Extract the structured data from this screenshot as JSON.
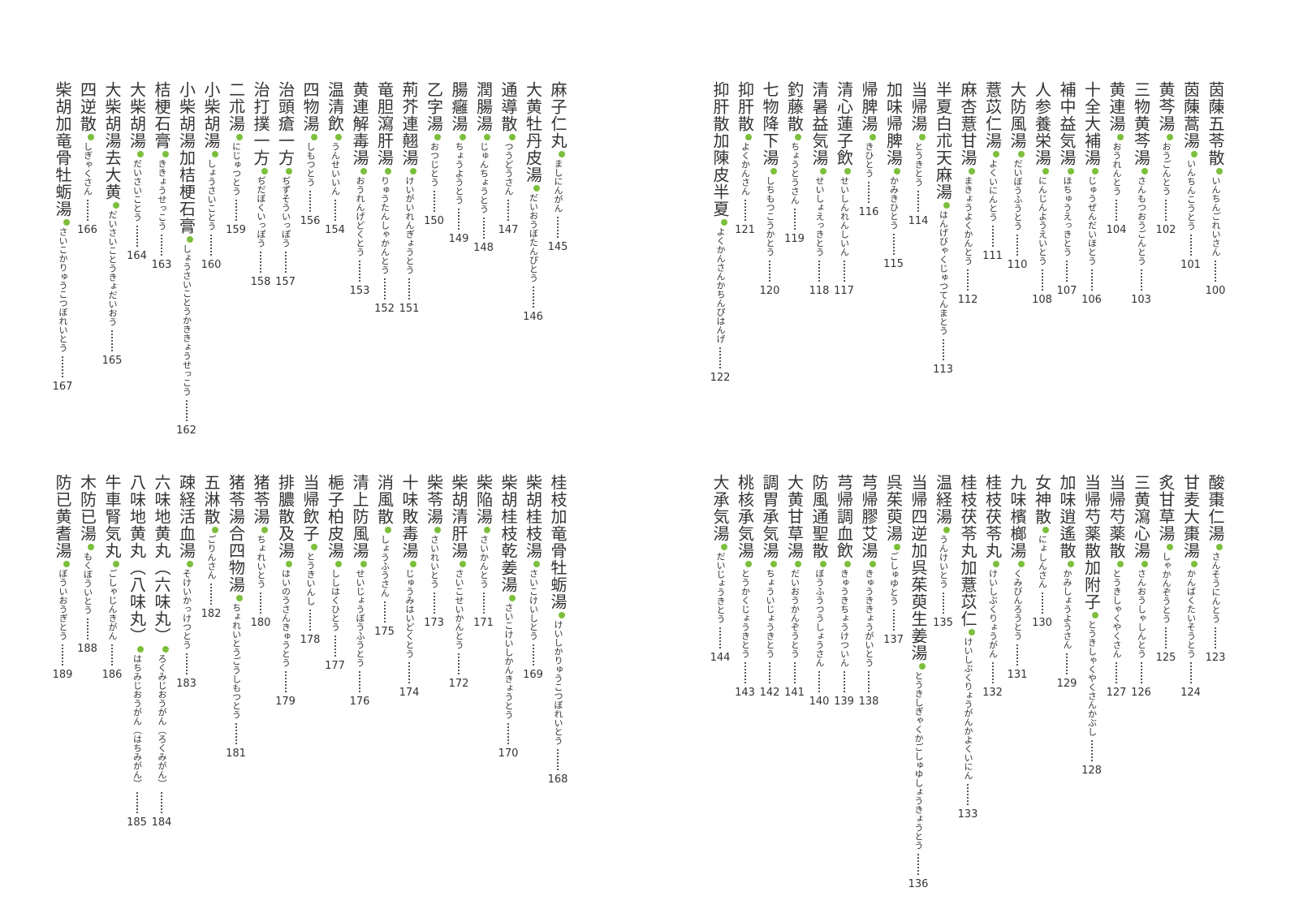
{
  "blocks": [
    {
      "entries": [
        {
          "name": "茵蔯五苓散",
          "reading": "いんちんごれいさん",
          "page": 100
        },
        {
          "name": "茵蔯蒿湯",
          "reading": "いんちんこうとう",
          "page": 101
        },
        {
          "name": "黄芩湯",
          "reading": "おうごんとう",
          "page": 102
        },
        {
          "name": "三物黄芩湯",
          "reading": "さんもつおうごんとう",
          "page": 103
        },
        {
          "name": "黄連湯",
          "reading": "おうれんとう",
          "page": 104
        },
        {
          "name": "十全大補湯",
          "reading": "じゅうぜんだいほとう",
          "page": 106
        },
        {
          "name": "補中益気湯",
          "reading": "ほちゅうえっきとう",
          "page": 107
        },
        {
          "name": "人参養栄湯",
          "reading": "にんじんようえいとう",
          "page": 108
        },
        {
          "name": "大防風湯",
          "reading": "だいぼうふうとう",
          "page": 110
        },
        {
          "name": "薏苡仁湯",
          "reading": "よくいにんとう",
          "page": 111
        },
        {
          "name": "麻杏薏甘湯",
          "reading": "まきょうよくかんとう",
          "page": 112
        },
        {
          "name": "半夏白朮天麻湯",
          "reading": "はんげびゃくじゅつてんまとう",
          "page": 113
        },
        {
          "name": "当帰湯",
          "reading": "とうきとう",
          "page": 114
        },
        {
          "name": "加味帰脾湯",
          "reading": "かみきひとう",
          "page": 115
        },
        {
          "name": "帰脾湯",
          "reading": "きひとう",
          "page": 116
        },
        {
          "name": "清心蓮子飲",
          "reading": "せいしんれんしいん",
          "page": 117
        },
        {
          "name": "清暑益気湯",
          "reading": "せいしょえっきとう",
          "page": 118
        },
        {
          "name": "釣藤散",
          "reading": "ちょうとうさん",
          "page": 119
        },
        {
          "name": "七物降下湯",
          "reading": "しちもつこうかとう",
          "page": 120
        },
        {
          "name": "抑肝散",
          "reading": "よくかんさん",
          "page": 121
        },
        {
          "name": "抑肝散加陳皮半夏",
          "reading": "よくかんさんかちんぴはんげ",
          "page": 122
        }
      ]
    },
    {
      "entries": [
        {
          "name": "酸棗仁湯",
          "reading": "さんそうにんとう",
          "page": 123
        },
        {
          "name": "甘麦大棗湯",
          "reading": "かんばくたいそうとう",
          "page": 124
        },
        {
          "name": "炙甘草湯",
          "reading": "しゃかんぞうとう",
          "page": 125
        },
        {
          "name": "三黄瀉心湯",
          "reading": "さんおうしゃしんとう",
          "page": 126
        },
        {
          "name": "当帰芍薬散",
          "reading": "とうきしゃくやくさん",
          "page": 127
        },
        {
          "name": "当帰芍薬散加附子",
          "reading": "とうきしゃくやくさんかぶし",
          "page": 128
        },
        {
          "name": "加味逍遙散",
          "reading": "かみしょうようさん",
          "page": 129
        },
        {
          "name": "女神散",
          "reading": "にょしんさん",
          "page": 130
        },
        {
          "name": "九味檳榔湯",
          "reading": "くみびんろうとう",
          "page": 131
        },
        {
          "name": "桂枝茯苓丸",
          "reading": "けいしぶくりょうがん",
          "page": 132
        },
        {
          "name": "桂枝茯苓丸加薏苡仁",
          "reading": "けいしぶくりょうがんかよくいにん",
          "page": 133
        },
        {
          "name": "温経湯",
          "reading": "うんけいとう",
          "page": 135
        },
        {
          "name": "当帰四逆加呉茱萸生姜湯",
          "reading": "とうきしぎゃくかごしゅゆしょうきょうとう",
          "page": 136
        },
        {
          "name": "呉茱萸湯",
          "reading": "ごしゅゆとう",
          "page": 137
        },
        {
          "name": "芎帰膠艾湯",
          "reading": "きゅうききょうがいとう",
          "page": 138
        },
        {
          "name": "芎帰調血飲",
          "reading": "きゅうきちょうけついん",
          "page": 139
        },
        {
          "name": "防風通聖散",
          "reading": "ぼうふうつうしょうさん",
          "page": 140
        },
        {
          "name": "大黄甘草湯",
          "reading": "だいおうかんぞうとう",
          "page": 141
        },
        {
          "name": "調胃承気湯",
          "reading": "ちょういじょうきとう",
          "page": 142
        },
        {
          "name": "桃核承気湯",
          "reading": "とうかくじょうきとう",
          "page": 143
        },
        {
          "name": "大承気湯",
          "reading": "だいじょうきとう",
          "page": 144
        }
      ]
    },
    {
      "entries": [
        {
          "name": "麻子仁丸",
          "reading": "ましにんがん",
          "page": 145
        },
        {
          "name": "大黄牡丹皮湯",
          "reading": "だいおうぼたんぴとう",
          "page": 146
        },
        {
          "name": "通導散",
          "reading": "つうどうさん",
          "page": 147
        },
        {
          "name": "潤腸湯",
          "reading": "じゅんちょうとう",
          "page": 148
        },
        {
          "name": "腸癰湯",
          "reading": "ちょうようとう",
          "page": 149
        },
        {
          "name": "乙字湯",
          "reading": "おつじとう",
          "page": 150
        },
        {
          "name": "荊芥連翹湯",
          "reading": "けいがいれんぎょうとう",
          "page": 151
        },
        {
          "name": "竜胆瀉肝湯",
          "reading": "りゅうたんしゃかんとう",
          "page": 152
        },
        {
          "name": "黄連解毒湯",
          "reading": "おうれんげどくとう",
          "page": 153
        },
        {
          "name": "温清飲",
          "reading": "うんせいいん",
          "page": 154
        },
        {
          "name": "四物湯",
          "reading": "しもつとう",
          "page": 156
        },
        {
          "name": "治頭瘡一方",
          "reading": "ぢずそういっぽう",
          "page": 157
        },
        {
          "name": "治打撲一方",
          "reading": "ぢだぼくいっぽう",
          "page": 158
        },
        {
          "name": "二朮湯",
          "reading": "にじゅつとう",
          "page": 159
        },
        {
          "name": "小柴胡湯",
          "reading": "しょうさいことう",
          "page": 160
        },
        {
          "name": "小柴胡湯加桔梗石膏",
          "reading": "しょうさいことうかききょうせっこう",
          "page": 162
        },
        {
          "name": "桔梗石膏",
          "reading": "ききょうせっこう",
          "page": 163
        },
        {
          "name": "大柴胡湯",
          "reading": "だいさいことう",
          "page": 164
        },
        {
          "name": "大柴胡湯去大黄",
          "reading": "だいさいことうきょだいおう",
          "page": 165
        },
        {
          "name": "四逆散",
          "reading": "しぎゃくさん",
          "page": 166
        },
        {
          "name": "柴胡加竜骨牡蛎湯",
          "reading": "さいこかりゅうこつぼれいとう",
          "page": 167
        }
      ]
    },
    {
      "entries": [
        {
          "name": "桂枝加竜骨牡蛎湯",
          "reading": "けいしかりゅうこつぼれいとう",
          "page": 168
        },
        {
          "name": "柴胡桂枝湯",
          "reading": "さいこけいしとう",
          "page": 169
        },
        {
          "name": "柴胡桂枝乾姜湯",
          "reading": "さいこけいしかんきょうとう",
          "page": 170
        },
        {
          "name": "柴陥湯",
          "reading": "さいかんとう",
          "page": 171
        },
        {
          "name": "柴胡清肝湯",
          "reading": "さいこせいかんとう",
          "page": 172
        },
        {
          "name": "柴苓湯",
          "reading": "さいれいとう",
          "page": 173
        },
        {
          "name": "十味敗毒湯",
          "reading": "じゅうみはいどくとう",
          "page": 174
        },
        {
          "name": "消風散",
          "reading": "しょうふうさん",
          "page": 175
        },
        {
          "name": "清上防風湯",
          "reading": "せいじょうぼうふうとう",
          "page": 176
        },
        {
          "name": "梔子柏皮湯",
          "reading": "ししはくひとう",
          "page": 177
        },
        {
          "name": "当帰飲子",
          "reading": "とうきいんし",
          "page": 178
        },
        {
          "name": "排膿散及湯",
          "reading": "はいのうさんきゅうとう",
          "page": 179
        },
        {
          "name": "猪苓湯",
          "reading": "ちょれいとう",
          "page": 180
        },
        {
          "name": "猪苓湯合四物湯",
          "reading": "ちょれいとうごうしもつとう",
          "page": 181
        },
        {
          "name": "五淋散",
          "reading": "ごりんさん",
          "page": 182
        },
        {
          "name": "疎経活血湯",
          "reading": "そけいかっけつとう",
          "page": 183
        },
        {
          "name": "六味地黄丸（六味丸）",
          "reading": "ろくみじおうがん（ろくみがん）",
          "page": 184
        },
        {
          "name": "八味地黄丸（八味丸）",
          "reading": "はちみじおうがん（はちみがん）",
          "page": 185
        },
        {
          "name": "牛車腎気丸",
          "reading": "ごしゃじんきがん",
          "page": 186
        },
        {
          "name": "木防已湯",
          "reading": "もくぼういとう",
          "page": 188
        },
        {
          "name": "防已黄耆湯",
          "reading": "ぼういおうぎとう",
          "page": 189
        }
      ]
    }
  ]
}
